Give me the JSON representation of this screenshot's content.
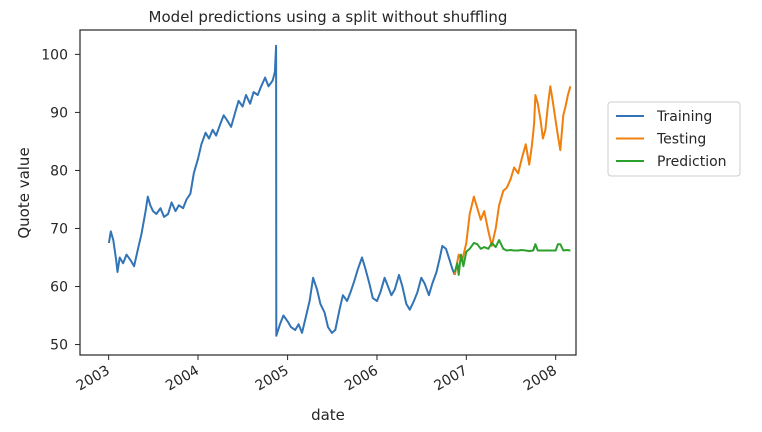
{
  "chart_data": {
    "type": "line",
    "title": "Model predictions using a split without shuffling",
    "xlabel": "date",
    "ylabel": "Quote value",
    "xlim": [
      "2002-09-06",
      "2008-03-24"
    ],
    "ylim": [
      48.2,
      104.2
    ],
    "x_ticks": [
      "2003",
      "2004",
      "2005",
      "2006",
      "2007",
      "2008"
    ],
    "x_tick_dates": [
      "2003-01-01",
      "2004-01-01",
      "2005-01-01",
      "2006-01-01",
      "2007-01-01",
      "2008-01-01"
    ],
    "y_ticks": [
      50,
      60,
      70,
      80,
      90,
      100
    ],
    "grid": false,
    "legend_position": "outside-right",
    "series": [
      {
        "name": "Training",
        "color": "#3274b5",
        "points": [
          [
            "2003-01-02",
            67.5
          ],
          [
            "2003-01-10",
            69.5
          ],
          [
            "2003-01-20",
            68.0
          ],
          [
            "2003-02-01",
            64.5
          ],
          [
            "2003-02-06",
            62.5
          ],
          [
            "2003-02-15",
            65.0
          ],
          [
            "2003-03-01",
            64.0
          ],
          [
            "2003-03-15",
            65.5
          ],
          [
            "2003-04-01",
            64.5
          ],
          [
            "2003-04-15",
            63.5
          ],
          [
            "2003-05-01",
            66.5
          ],
          [
            "2003-05-15",
            69.0
          ],
          [
            "2003-06-01",
            73.0
          ],
          [
            "2003-06-10",
            75.5
          ],
          [
            "2003-06-20",
            74.0
          ],
          [
            "2003-07-01",
            73.0
          ],
          [
            "2003-07-15",
            72.5
          ],
          [
            "2003-08-01",
            73.5
          ],
          [
            "2003-08-15",
            72.0
          ],
          [
            "2003-09-01",
            72.5
          ],
          [
            "2003-09-15",
            74.5
          ],
          [
            "2003-10-01",
            73.0
          ],
          [
            "2003-10-15",
            74.0
          ],
          [
            "2003-11-01",
            73.5
          ],
          [
            "2003-11-15",
            75.0
          ],
          [
            "2003-12-01",
            76.0
          ],
          [
            "2003-12-15",
            79.5
          ],
          [
            "2004-01-01",
            82.0
          ],
          [
            "2004-01-15",
            84.5
          ],
          [
            "2004-02-01",
            86.5
          ],
          [
            "2004-02-15",
            85.5
          ],
          [
            "2004-03-01",
            87.0
          ],
          [
            "2004-03-15",
            86.0
          ],
          [
            "2004-04-01",
            88.0
          ],
          [
            "2004-04-15",
            89.5
          ],
          [
            "2004-05-01",
            88.5
          ],
          [
            "2004-05-15",
            87.5
          ],
          [
            "2004-06-01",
            90.0
          ],
          [
            "2004-06-15",
            92.0
          ],
          [
            "2004-07-01",
            91.0
          ],
          [
            "2004-07-15",
            93.0
          ],
          [
            "2004-08-01",
            91.5
          ],
          [
            "2004-08-15",
            93.5
          ],
          [
            "2004-09-01",
            93.0
          ],
          [
            "2004-09-15",
            94.5
          ],
          [
            "2004-10-01",
            96.0
          ],
          [
            "2004-10-15",
            94.5
          ],
          [
            "2004-11-01",
            95.5
          ],
          [
            "2004-11-10",
            97.0
          ],
          [
            "2004-11-15",
            101.5
          ],
          [
            "2004-11-16",
            51.5
          ],
          [
            "2004-12-01",
            53.5
          ],
          [
            "2004-12-15",
            55.0
          ],
          [
            "2005-01-01",
            54.0
          ],
          [
            "2005-01-15",
            53.0
          ],
          [
            "2005-02-01",
            52.5
          ],
          [
            "2005-02-15",
            53.5
          ],
          [
            "2005-03-01",
            52.0
          ],
          [
            "2005-03-15",
            54.5
          ],
          [
            "2005-04-01",
            57.5
          ],
          [
            "2005-04-15",
            61.5
          ],
          [
            "2005-05-01",
            59.5
          ],
          [
            "2005-05-15",
            57.0
          ],
          [
            "2005-06-01",
            55.5
          ],
          [
            "2005-06-15",
            53.0
          ],
          [
            "2005-07-01",
            52.0
          ],
          [
            "2005-07-15",
            52.5
          ],
          [
            "2005-08-01",
            56.0
          ],
          [
            "2005-08-15",
            58.5
          ],
          [
            "2005-09-01",
            57.5
          ],
          [
            "2005-09-15",
            59.0
          ],
          [
            "2005-10-01",
            61.0
          ],
          [
            "2005-10-15",
            63.0
          ],
          [
            "2005-11-01",
            65.0
          ],
          [
            "2005-11-15",
            63.0
          ],
          [
            "2005-12-01",
            60.5
          ],
          [
            "2005-12-15",
            58.0
          ],
          [
            "2006-01-01",
            57.5
          ],
          [
            "2006-01-15",
            59.0
          ],
          [
            "2006-02-01",
            61.5
          ],
          [
            "2006-02-15",
            60.0
          ],
          [
            "2006-03-01",
            58.5
          ],
          [
            "2006-03-15",
            59.5
          ],
          [
            "2006-04-01",
            62.0
          ],
          [
            "2006-04-15",
            60.0
          ],
          [
            "2006-05-01",
            57.0
          ],
          [
            "2006-05-15",
            56.0
          ],
          [
            "2006-06-01",
            57.5
          ],
          [
            "2006-06-15",
            59.0
          ],
          [
            "2006-07-01",
            61.5
          ],
          [
            "2006-07-15",
            60.5
          ],
          [
            "2006-08-01",
            58.5
          ],
          [
            "2006-08-15",
            60.5
          ],
          [
            "2006-09-01",
            62.5
          ],
          [
            "2006-09-15",
            65.0
          ],
          [
            "2006-09-25",
            67.0
          ],
          [
            "2006-10-10",
            66.5
          ],
          [
            "2006-10-25",
            64.5
          ],
          [
            "2006-11-05",
            63.0
          ],
          [
            "2006-11-15",
            62.0
          ]
        ]
      },
      {
        "name": "Testing",
        "color": "#f07f0e",
        "points": [
          [
            "2006-11-15",
            62.0
          ],
          [
            "2006-12-01",
            65.5
          ],
          [
            "2006-12-15",
            64.5
          ],
          [
            "2007-01-01",
            67.5
          ],
          [
            "2007-01-15",
            72.5
          ],
          [
            "2007-02-01",
            75.5
          ],
          [
            "2007-02-15",
            73.5
          ],
          [
            "2007-03-01",
            71.5
          ],
          [
            "2007-03-15",
            73.0
          ],
          [
            "2007-04-01",
            69.5
          ],
          [
            "2007-04-15",
            67.0
          ],
          [
            "2007-05-01",
            70.0
          ],
          [
            "2007-05-15",
            74.0
          ],
          [
            "2007-06-01",
            76.5
          ],
          [
            "2007-06-15",
            77.0
          ],
          [
            "2007-07-01",
            78.5
          ],
          [
            "2007-07-15",
            80.5
          ],
          [
            "2007-08-01",
            79.5
          ],
          [
            "2007-08-15",
            82.0
          ],
          [
            "2007-09-01",
            84.5
          ],
          [
            "2007-09-15",
            81.0
          ],
          [
            "2007-09-25",
            84.0
          ],
          [
            "2007-10-05",
            88.0
          ],
          [
            "2007-10-10",
            93.0
          ],
          [
            "2007-10-20",
            91.5
          ],
          [
            "2007-11-01",
            88.5
          ],
          [
            "2007-11-10",
            85.5
          ],
          [
            "2007-11-20",
            87.0
          ],
          [
            "2007-12-01",
            91.5
          ],
          [
            "2007-12-10",
            94.5
          ],
          [
            "2007-12-20",
            92.0
          ],
          [
            "2008-01-01",
            88.5
          ],
          [
            "2008-01-10",
            86.0
          ],
          [
            "2008-01-20",
            83.5
          ],
          [
            "2008-02-01",
            89.5
          ],
          [
            "2008-02-10",
            91.0
          ],
          [
            "2008-02-20",
            93.0
          ],
          [
            "2008-03-01",
            94.5
          ]
        ]
      },
      {
        "name": "Prediction",
        "color": "#2ca02c",
        "points": [
          [
            "2006-11-15",
            62.5
          ],
          [
            "2006-11-25",
            64.0
          ],
          [
            "2006-12-01",
            62.0
          ],
          [
            "2006-12-10",
            65.5
          ],
          [
            "2006-12-20",
            63.5
          ],
          [
            "2007-01-01",
            66.0
          ],
          [
            "2007-01-15",
            66.5
          ],
          [
            "2007-02-01",
            67.5
          ],
          [
            "2007-02-15",
            67.3
          ],
          [
            "2007-03-01",
            66.5
          ],
          [
            "2007-03-15",
            66.8
          ],
          [
            "2007-04-01",
            66.5
          ],
          [
            "2007-04-15",
            67.5
          ],
          [
            "2007-05-01",
            66.8
          ],
          [
            "2007-05-15",
            68.0
          ],
          [
            "2007-06-01",
            66.5
          ],
          [
            "2007-06-15",
            66.2
          ],
          [
            "2007-07-01",
            66.3
          ],
          [
            "2007-07-15",
            66.2
          ],
          [
            "2007-08-01",
            66.2
          ],
          [
            "2007-08-15",
            66.3
          ],
          [
            "2007-09-01",
            66.2
          ],
          [
            "2007-09-15",
            66.1
          ],
          [
            "2007-10-01",
            66.2
          ],
          [
            "2007-10-10",
            67.3
          ],
          [
            "2007-10-20",
            66.2
          ],
          [
            "2007-11-01",
            66.2
          ],
          [
            "2007-11-15",
            66.2
          ],
          [
            "2007-12-01",
            66.2
          ],
          [
            "2007-12-15",
            66.2
          ],
          [
            "2008-01-01",
            66.2
          ],
          [
            "2008-01-10",
            67.3
          ],
          [
            "2008-01-20",
            67.3
          ],
          [
            "2008-02-01",
            66.2
          ],
          [
            "2008-02-15",
            66.3
          ],
          [
            "2008-03-01",
            66.2
          ]
        ]
      }
    ]
  }
}
